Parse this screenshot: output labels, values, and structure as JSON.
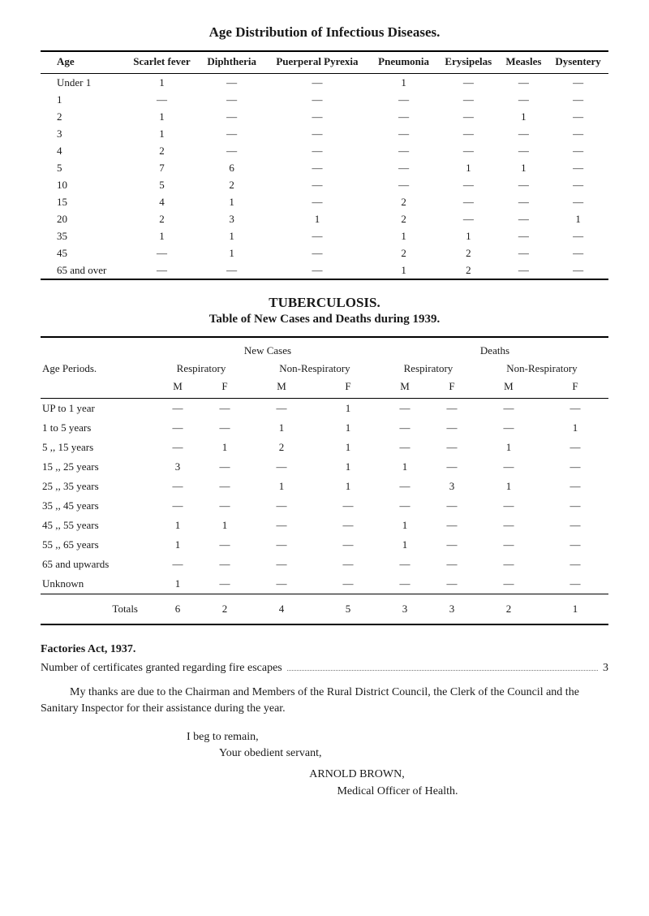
{
  "title1": "Age Distribution of Infectious Diseases.",
  "table1": {
    "headers": [
      "Age",
      "Scarlet fever",
      "Diphtheria",
      "Puerperal Pyrexia",
      "Pneumonia",
      "Erysipelas",
      "Measles",
      "Dysentery"
    ],
    "rows": [
      [
        "Under 1",
        "1",
        "—",
        "—",
        "1",
        "—",
        "—",
        "—"
      ],
      [
        "1",
        "—",
        "—",
        "—",
        "—",
        "—",
        "—",
        "—"
      ],
      [
        "2",
        "1",
        "—",
        "—",
        "—",
        "—",
        "1",
        "—"
      ],
      [
        "3",
        "1",
        "—",
        "—",
        "—",
        "—",
        "—",
        "—"
      ],
      [
        "4",
        "2",
        "—",
        "—",
        "—",
        "—",
        "—",
        "—"
      ],
      [
        "5",
        "7",
        "6",
        "—",
        "—",
        "1",
        "1",
        "—"
      ],
      [
        "10",
        "5",
        "2",
        "—",
        "—",
        "—",
        "—",
        "—"
      ],
      [
        "15",
        "4",
        "1",
        "—",
        "2",
        "—",
        "—",
        "—"
      ],
      [
        "20",
        "2",
        "3",
        "1",
        "2",
        "—",
        "—",
        "1"
      ],
      [
        "35",
        "1",
        "1",
        "—",
        "1",
        "1",
        "—",
        "—"
      ],
      [
        "45",
        "—",
        "1",
        "—",
        "2",
        "2",
        "—",
        "—"
      ],
      [
        "65 and over",
        "—",
        "—",
        "—",
        "1",
        "2",
        "—",
        "—"
      ]
    ]
  },
  "title2": "TUBERCULOSIS.",
  "title2b": "Table of New Cases and Deaths during 1939.",
  "table2": {
    "periods_label": "Age Periods.",
    "group_headers": [
      "New Cases",
      "Deaths"
    ],
    "sub_headers": [
      "Respiratory",
      "Non-Respiratory",
      "Respiratory",
      "Non-Respiratory"
    ],
    "mf_headers": [
      "M",
      "F",
      "M",
      "F",
      "M",
      "F",
      "M",
      "F"
    ],
    "rows": [
      [
        "UP to 1 year",
        "—",
        "—",
        "—",
        "1",
        "—",
        "—",
        "—",
        "—"
      ],
      [
        "1 to 5 years",
        "—",
        "—",
        "1",
        "1",
        "—",
        "—",
        "—",
        "1"
      ],
      [
        "5 ,, 15 years",
        "—",
        "1",
        "2",
        "1",
        "—",
        "—",
        "1",
        "—"
      ],
      [
        "15 ,, 25 years",
        "3",
        "—",
        "—",
        "1",
        "1",
        "—",
        "—",
        "—"
      ],
      [
        "25 ,, 35 years",
        "—",
        "—",
        "1",
        "1",
        "—",
        "3",
        "1",
        "—"
      ],
      [
        "35 ,, 45 years",
        "—",
        "—",
        "—",
        "—",
        "—",
        "—",
        "—",
        "—"
      ],
      [
        "45 ,, 55 years",
        "1",
        "1",
        "—",
        "—",
        "1",
        "—",
        "—",
        "—"
      ],
      [
        "55 ,, 65 years",
        "1",
        "—",
        "—",
        "—",
        "1",
        "—",
        "—",
        "—"
      ],
      [
        "65 and upwards",
        "—",
        "—",
        "—",
        "—",
        "—",
        "—",
        "—",
        "—"
      ],
      [
        "Unknown",
        "1",
        "—",
        "—",
        "—",
        "—",
        "—",
        "—",
        "—"
      ]
    ],
    "totals_label": "Totals",
    "totals": [
      "6",
      "2",
      "4",
      "5",
      "3",
      "3",
      "2",
      "1"
    ]
  },
  "factories": {
    "heading": "Factories Act, 1937.",
    "line_text": "Number of certificates granted regarding fire escapes",
    "line_value": "3"
  },
  "paragraph": "My thanks are due to the Chairman and Members of the Rural District Council, the Clerk of the Council and the Sanitary Inspector for their assistance during the year.",
  "closing": {
    "l1": "I beg to remain,",
    "l2": "Your obedient servant,",
    "name": "ARNOLD   BROWN,",
    "role": "Medical Officer of Health."
  },
  "colors": {
    "text": "#1a1a1a",
    "bg": "#ffffff",
    "rule": "#000000"
  }
}
